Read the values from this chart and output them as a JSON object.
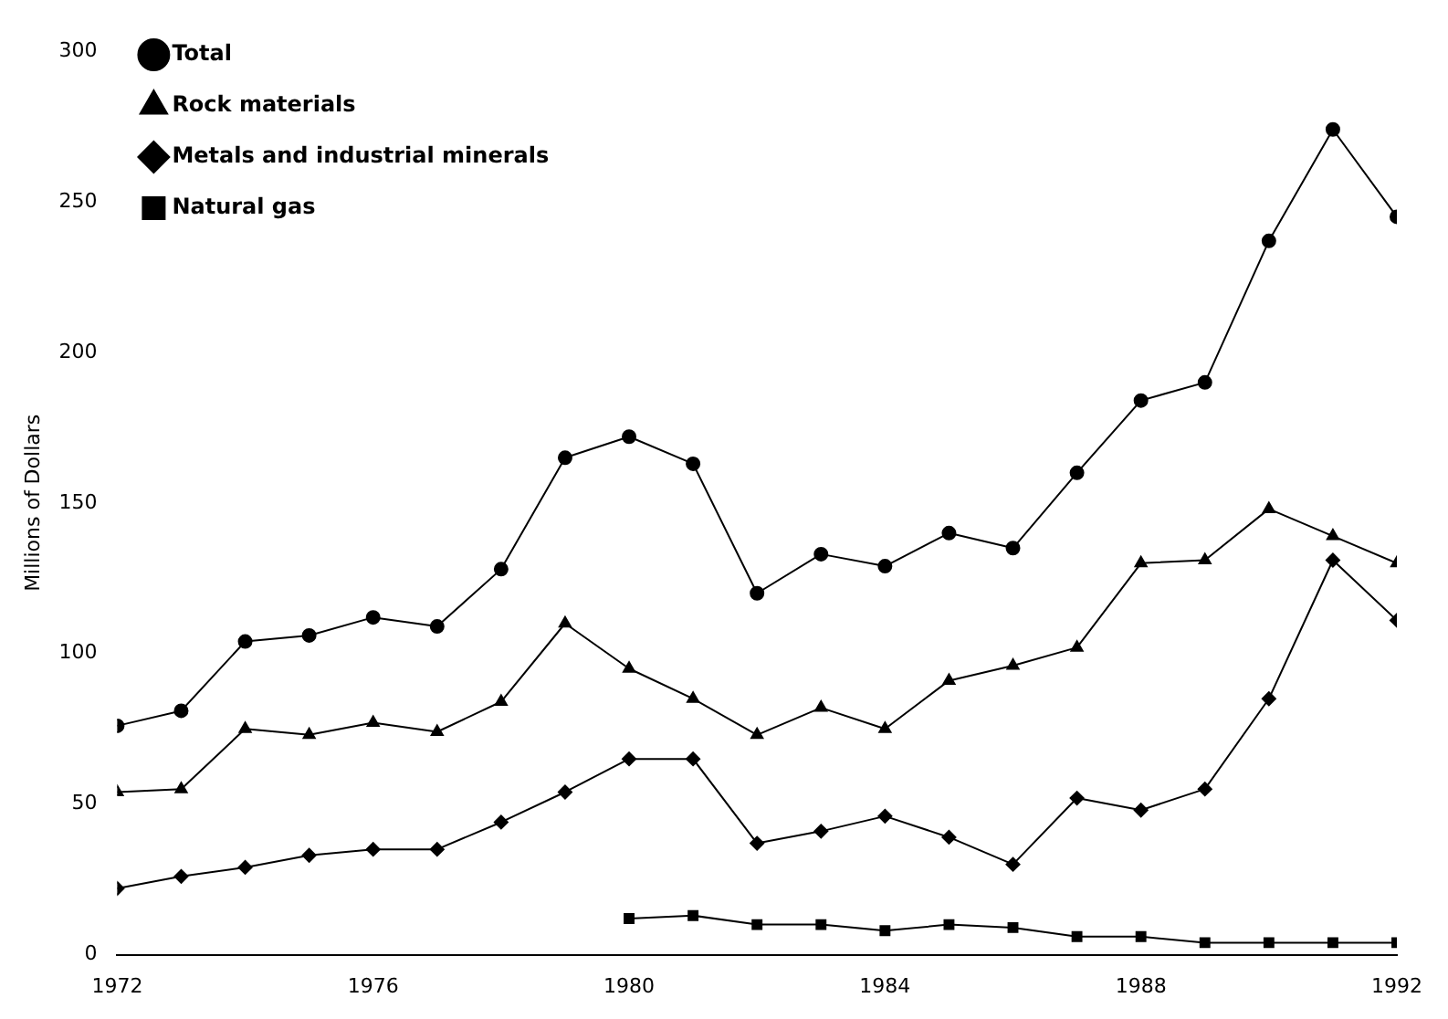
{
  "chart_data": {
    "type": "line",
    "ylabel": "Millions of Dollars",
    "x": [
      1972,
      1973,
      1974,
      1975,
      1976,
      1977,
      1978,
      1979,
      1980,
      1981,
      1982,
      1983,
      1984,
      1985,
      1986,
      1987,
      1988,
      1989,
      1990,
      1991,
      1992
    ],
    "series": [
      {
        "name": "Total",
        "color": "#000000",
        "marker": "circle",
        "values": [
          76,
          81,
          104,
          106,
          112,
          109,
          128,
          165,
          172,
          163,
          120,
          133,
          129,
          140,
          135,
          160,
          184,
          190,
          237,
          274,
          245
        ]
      },
      {
        "name": "Rock materials",
        "color": "#000000",
        "marker": "triangle",
        "values": [
          54,
          55,
          75,
          73,
          77,
          74,
          84,
          110,
          95,
          85,
          73,
          82,
          75,
          91,
          96,
          102,
          130,
          131,
          148,
          139,
          130
        ]
      },
      {
        "name": "Metals and industrial minerals",
        "color": "#000000",
        "marker": "diamond",
        "values": [
          22,
          26,
          29,
          33,
          35,
          35,
          44,
          54,
          65,
          65,
          37,
          41,
          46,
          39,
          30,
          52,
          48,
          55,
          85,
          131,
          111
        ]
      },
      {
        "name": "Natural gas",
        "color": "#000000",
        "marker": "square",
        "values": [
          null,
          null,
          null,
          null,
          null,
          null,
          null,
          null,
          12,
          13,
          10,
          10,
          8,
          10,
          9,
          6,
          6,
          4,
          4,
          4,
          4
        ]
      }
    ],
    "xlim": [
      1972,
      1992
    ],
    "xticks": [
      1972,
      1976,
      1980,
      1984,
      1988,
      1992
    ],
    "ylim": [
      0,
      300
    ],
    "yticks": [
      0,
      50,
      100,
      150,
      200,
      250,
      300
    ],
    "grid": false,
    "legend": "top left"
  }
}
